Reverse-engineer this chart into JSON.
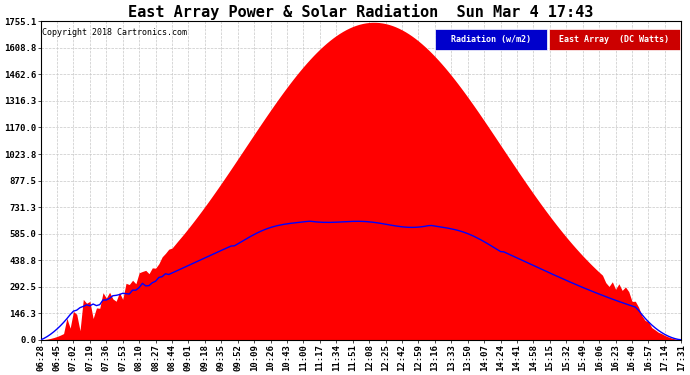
{
  "title": "East Array Power & Solar Radiation  Sun Mar 4 17:43",
  "copyright": "Copyright 2018 Cartronics.com",
  "legend": [
    "Radiation (w/m2)",
    "East Array  (DC Watts)"
  ],
  "ytick_vals": [
    0.0,
    146.3,
    292.5,
    438.8,
    585.0,
    731.3,
    877.5,
    1023.8,
    1170.0,
    1316.3,
    1462.6,
    1608.8,
    1755.1
  ],
  "ytick_labels": [
    "0.0",
    "146.3",
    "292.5",
    "438.8",
    "585.0",
    "731.3",
    "877.5",
    "1023.8",
    "1170.0",
    "1316.3",
    "1462.6",
    "1608.8",
    "1755.1"
  ],
  "ymax": 1755.1,
  "xtick_labels": [
    "06:28",
    "06:45",
    "07:02",
    "07:19",
    "07:36",
    "07:53",
    "08:10",
    "08:27",
    "08:44",
    "09:01",
    "09:18",
    "09:35",
    "09:52",
    "10:09",
    "10:26",
    "10:43",
    "11:00",
    "11:17",
    "11:34",
    "11:51",
    "12:08",
    "12:25",
    "12:42",
    "12:59",
    "13:16",
    "13:33",
    "13:50",
    "14:07",
    "14:24",
    "14:41",
    "14:58",
    "15:15",
    "15:32",
    "15:49",
    "16:06",
    "16:23",
    "16:40",
    "16:57",
    "17:14",
    "17:31"
  ],
  "background_color": "#ffffff",
  "grid_color": "#c8c8c8",
  "red_color": "#ff0000",
  "blue_color": "#0000ff",
  "legend_rad_bg": "#0000cc",
  "legend_ea_bg": "#cc0000",
  "title_fontsize": 11,
  "tick_fontsize": 6.5
}
